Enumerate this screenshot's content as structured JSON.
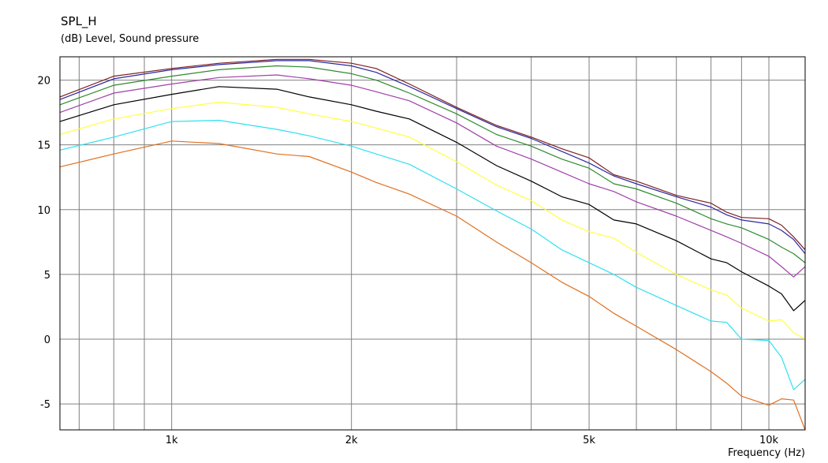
{
  "chart_data": {
    "type": "line",
    "title": "SPL_H",
    "subtitle": "(dB)  Level, Sound pressure",
    "xlabel": "Frequency  (Hz)",
    "xscale": "log",
    "xlim": [
      650,
      11500
    ],
    "ylim": [
      -7,
      21.8
    ],
    "grid": true,
    "y_ticks": [
      -5,
      0,
      5,
      10,
      15,
      20
    ],
    "y_tick_labels": [
      "-5",
      "0",
      "5",
      "10",
      "15",
      "20"
    ],
    "x_major_ticks": [
      1000,
      2000,
      5000,
      10000
    ],
    "x_tick_labels": [
      "1k",
      "2k",
      "5k",
      "10k"
    ],
    "x_minor_ticks": [
      700,
      800,
      900,
      3000,
      4000,
      6000,
      7000,
      8000,
      9000
    ],
    "series": [
      {
        "color": "#7f1f1f",
        "x": [
          650,
          800,
          1000,
          1200,
          1500,
          1700,
          2000,
          2200,
          2500,
          3000,
          3500,
          4000,
          4500,
          5000,
          5500,
          6000,
          7000,
          8000,
          8500,
          9000,
          10000,
          10500,
          11000,
          11500
        ],
        "y": [
          18.7,
          20.3,
          20.9,
          21.3,
          21.6,
          21.6,
          21.3,
          20.9,
          19.7,
          17.9,
          16.5,
          15.6,
          14.7,
          14.0,
          12.7,
          12.2,
          11.1,
          10.5,
          9.8,
          9.4,
          9.3,
          8.8,
          7.9,
          6.9
        ]
      },
      {
        "color": "#2a2aa0",
        "x": [
          650,
          800,
          1000,
          1200,
          1500,
          1700,
          2000,
          2200,
          2500,
          3000,
          3500,
          4000,
          4500,
          5000,
          5500,
          6000,
          7000,
          8000,
          8500,
          9000,
          10000,
          10500,
          11000,
          11500
        ],
        "y": [
          18.5,
          20.1,
          20.8,
          21.2,
          21.5,
          21.5,
          21.1,
          20.6,
          19.5,
          17.8,
          16.4,
          15.5,
          14.5,
          13.6,
          12.6,
          12.0,
          11.0,
          10.2,
          9.6,
          9.2,
          8.9,
          8.4,
          7.7,
          6.6
        ]
      },
      {
        "color": "#2e8b2e",
        "x": [
          650,
          800,
          1000,
          1200,
          1500,
          1700,
          2000,
          2200,
          2500,
          3000,
          3500,
          4000,
          4500,
          5000,
          5500,
          6000,
          7000,
          8000,
          8500,
          9000,
          10000,
          10500,
          11000,
          11500
        ],
        "y": [
          18.1,
          19.6,
          20.3,
          20.8,
          21.1,
          21.0,
          20.5,
          20.0,
          19.0,
          17.4,
          15.8,
          14.9,
          13.9,
          13.2,
          12.0,
          11.6,
          10.5,
          9.3,
          8.9,
          8.6,
          7.7,
          7.1,
          6.6,
          5.9
        ]
      },
      {
        "color": "#a040a8",
        "x": [
          650,
          800,
          1000,
          1200,
          1500,
          1700,
          2000,
          2200,
          2500,
          3000,
          3500,
          4000,
          4500,
          5000,
          5500,
          6000,
          7000,
          8000,
          8500,
          9000,
          10000,
          10500,
          11000,
          11500
        ],
        "y": [
          17.5,
          19.0,
          19.7,
          20.2,
          20.4,
          20.1,
          19.6,
          19.1,
          18.4,
          16.7,
          14.9,
          13.9,
          12.9,
          12.0,
          11.4,
          10.6,
          9.5,
          8.4,
          7.9,
          7.4,
          6.4,
          5.6,
          4.8,
          5.6
        ]
      },
      {
        "color": "#000000",
        "x": [
          650,
          800,
          1000,
          1200,
          1500,
          1700,
          2000,
          2200,
          2500,
          3000,
          3500,
          4000,
          4500,
          5000,
          5500,
          6000,
          7000,
          8000,
          8500,
          9000,
          10000,
          10500,
          11000,
          11500
        ],
        "y": [
          16.8,
          18.1,
          18.9,
          19.5,
          19.3,
          18.7,
          18.1,
          17.6,
          17.0,
          15.2,
          13.4,
          12.2,
          11.0,
          10.4,
          9.2,
          8.9,
          7.6,
          6.2,
          5.9,
          5.2,
          4.1,
          3.5,
          2.2,
          3.0
        ]
      },
      {
        "color": "#ffff40",
        "x": [
          650,
          800,
          1000,
          1200,
          1500,
          1700,
          2000,
          2200,
          2500,
          3000,
          3500,
          4000,
          4500,
          5000,
          5500,
          6000,
          7000,
          8000,
          8500,
          9000,
          10000,
          10500,
          11000,
          11500
        ],
        "y": [
          15.8,
          17.0,
          17.8,
          18.3,
          17.9,
          17.4,
          16.8,
          16.3,
          15.6,
          13.7,
          11.9,
          10.7,
          9.2,
          8.3,
          7.8,
          6.7,
          5.0,
          3.8,
          3.4,
          2.4,
          1.4,
          1.5,
          0.5,
          0.0
        ]
      },
      {
        "color": "#30e0f0",
        "x": [
          650,
          800,
          1000,
          1200,
          1500,
          1700,
          2000,
          2200,
          2500,
          3000,
          3500,
          4000,
          4500,
          5000,
          5500,
          6000,
          7000,
          8000,
          8500,
          9000,
          10000,
          10500,
          11000,
          11500
        ],
        "y": [
          14.6,
          15.6,
          16.8,
          16.9,
          16.2,
          15.7,
          14.9,
          14.3,
          13.5,
          11.6,
          9.9,
          8.5,
          6.9,
          5.9,
          5.0,
          4.0,
          2.6,
          1.4,
          1.3,
          0.0,
          -0.1,
          -1.4,
          -3.9,
          -3.1
        ]
      },
      {
        "color": "#e07020",
        "x": [
          650,
          800,
          1000,
          1200,
          1500,
          1700,
          2000,
          2200,
          2500,
          3000,
          3500,
          4000,
          4500,
          5000,
          5500,
          6000,
          7000,
          8000,
          8500,
          9000,
          10000,
          10500,
          11000,
          11500
        ],
        "y": [
          13.3,
          14.3,
          15.3,
          15.1,
          14.3,
          14.1,
          12.9,
          12.1,
          11.2,
          9.5,
          7.5,
          5.9,
          4.4,
          3.3,
          2.0,
          1.0,
          -0.8,
          -2.5,
          -3.4,
          -4.4,
          -5.1,
          -4.6,
          -4.7,
          -7.0
        ]
      }
    ]
  }
}
